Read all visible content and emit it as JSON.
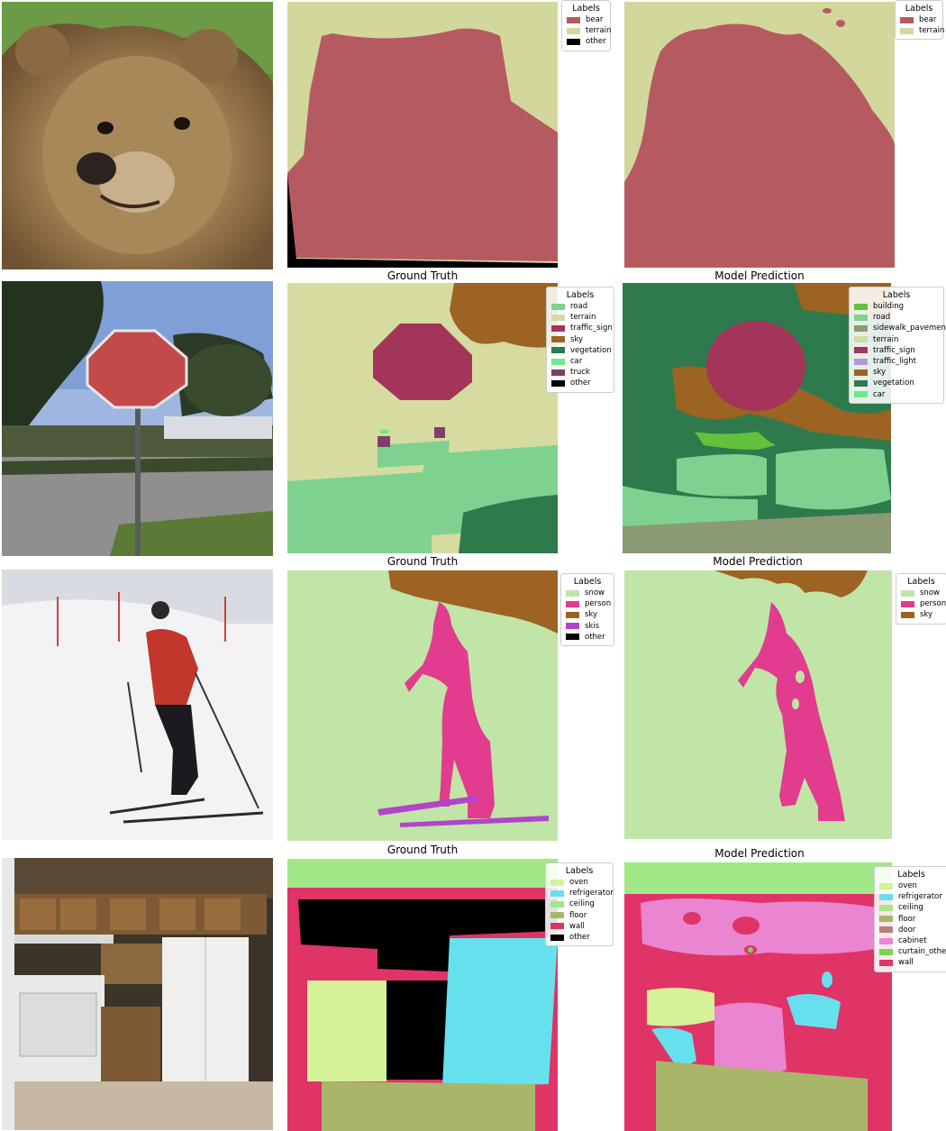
{
  "rows": [
    {
      "ground_truth_caption": "Ground Truth",
      "prediction_caption": "Model Prediction",
      "ground_truth_legend": {
        "title": "Labels",
        "items": [
          {
            "label": "bear",
            "color": "#b65a62"
          },
          {
            "label": "terrain",
            "color": "#d2d79c"
          },
          {
            "label": "other",
            "color": "#000000"
          }
        ]
      },
      "prediction_legend": {
        "title": "Labels",
        "items": [
          {
            "label": "bear",
            "color": "#b65a62"
          },
          {
            "label": "terrain",
            "color": "#d2d79c"
          }
        ]
      }
    },
    {
      "ground_truth_caption": "Ground Truth",
      "prediction_caption": "Model Prediction",
      "ground_truth_legend": {
        "title": "Labels",
        "items": [
          {
            "label": "road",
            "color": "#7fd18f"
          },
          {
            "label": "terrain",
            "color": "#d6dba0"
          },
          {
            "label": "traffic_sign",
            "color": "#a3345a"
          },
          {
            "label": "sky",
            "color": "#9c6323"
          },
          {
            "label": "vegetation",
            "color": "#2f7a4c"
          },
          {
            "label": "car",
            "color": "#6bea8b"
          },
          {
            "label": "truck",
            "color": "#7e3f6b"
          },
          {
            "label": "other",
            "color": "#000000"
          }
        ]
      },
      "prediction_legend": {
        "title": "Labels",
        "items": [
          {
            "label": "building",
            "color": "#63c23c"
          },
          {
            "label": "road",
            "color": "#7fd18f"
          },
          {
            "label": "sidewalk_pavement",
            "color": "#8c9a74"
          },
          {
            "label": "terrain",
            "color": "#d6dba0"
          },
          {
            "label": "traffic_sign",
            "color": "#a3345a"
          },
          {
            "label": "traffic_light",
            "color": "#b09bd8"
          },
          {
            "label": "sky",
            "color": "#9c6323"
          },
          {
            "label": "vegetation",
            "color": "#2f7a4c"
          },
          {
            "label": "car",
            "color": "#6bea8b"
          }
        ]
      }
    },
    {
      "ground_truth_caption": "Ground Truth",
      "prediction_caption": "Model Prediction",
      "ground_truth_legend": {
        "title": "Labels",
        "items": [
          {
            "label": "snow",
            "color": "#c1e5a7"
          },
          {
            "label": "person",
            "color": "#e23c8e"
          },
          {
            "label": "sky",
            "color": "#9c6323"
          },
          {
            "label": "skis",
            "color": "#b045c9"
          },
          {
            "label": "other",
            "color": "#000000"
          }
        ]
      },
      "prediction_legend": {
        "title": "Labels",
        "items": [
          {
            "label": "snow",
            "color": "#c1e5a7"
          },
          {
            "label": "person",
            "color": "#e23c8e"
          },
          {
            "label": "sky",
            "color": "#9c6323"
          }
        ]
      }
    },
    {
      "ground_truth_legend": {
        "title": "Labels",
        "items": [
          {
            "label": "oven",
            "color": "#d5f296"
          },
          {
            "label": "refrigerator",
            "color": "#67e0ee"
          },
          {
            "label": "ceiling",
            "color": "#a2e886"
          },
          {
            "label": "floor",
            "color": "#a9b66a"
          },
          {
            "label": "wall",
            "color": "#e03366"
          },
          {
            "label": "other",
            "color": "#000000"
          }
        ]
      },
      "prediction_legend": {
        "title": "Labels",
        "items": [
          {
            "label": "oven",
            "color": "#d5f296"
          },
          {
            "label": "refrigerator",
            "color": "#67e0ee"
          },
          {
            "label": "ceiling",
            "color": "#a2e886"
          },
          {
            "label": "floor",
            "color": "#a9b66a"
          },
          {
            "label": "door",
            "color": "#b87c7c"
          },
          {
            "label": "cabinet",
            "color": "#ea85d2"
          },
          {
            "label": "curtain_other",
            "color": "#73d84c"
          },
          {
            "label": "wall",
            "color": "#e03366"
          }
        ]
      }
    }
  ]
}
